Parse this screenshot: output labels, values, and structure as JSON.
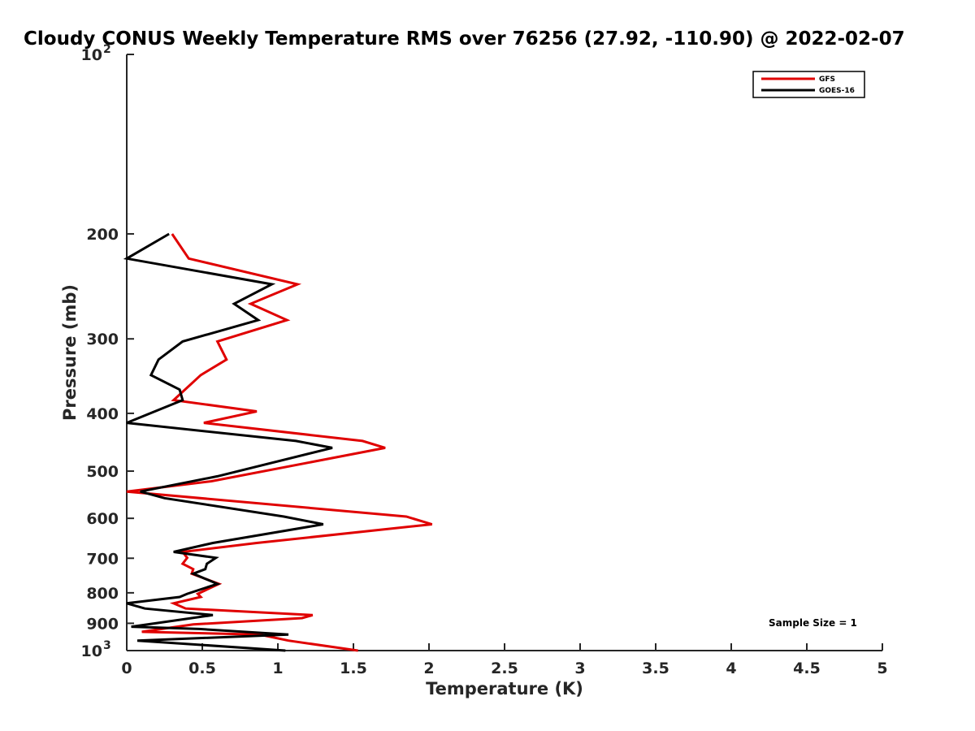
{
  "chart_data": {
    "type": "line",
    "title": "Cloudy CONUS Weekly Temperature RMS over 76256 (27.92, -110.90) @ 2022-02-07",
    "xlabel": "Temperature (K)",
    "ylabel": "Pressure (mb)",
    "xlim": [
      0,
      5
    ],
    "ylim": [
      100,
      1000
    ],
    "y_scale": "log",
    "y_reversed": true,
    "grid": false,
    "legend_position": "top-right",
    "x_ticks": [
      0,
      0.5,
      1,
      1.5,
      2,
      2.5,
      3,
      3.5,
      4,
      4.5,
      5
    ],
    "x_tick_labels": [
      "0",
      "0.5",
      "1",
      "1.5",
      "2",
      "2.5",
      "3",
      "3.5",
      "4",
      "4.5",
      "5"
    ],
    "y_ticks": [
      200,
      300,
      400,
      500,
      600,
      700,
      800,
      900
    ],
    "y_tick_labels": [
      "200",
      "300",
      "400",
      "500",
      "600",
      "700",
      "800",
      "900"
    ],
    "y_major_labels": [
      {
        "value": 100,
        "base": "10",
        "exp": "2"
      },
      {
        "value": 1000,
        "base": "10",
        "exp": "3"
      }
    ],
    "annotation": "Sample Size = 1",
    "series": [
      {
        "name": "GFS",
        "color": "#e00000",
        "points": [
          [
            0.3,
            200
          ],
          [
            0.41,
            220
          ],
          [
            1.13,
            243
          ],
          [
            0.82,
            262
          ],
          [
            1.06,
            279
          ],
          [
            0.6,
            303
          ],
          [
            0.66,
            325
          ],
          [
            0.49,
            345
          ],
          [
            0.31,
            380
          ],
          [
            0.86,
            397
          ],
          [
            0.51,
            415
          ],
          [
            1.56,
            445
          ],
          [
            1.71,
            457
          ],
          [
            0.56,
            520
          ],
          [
            0,
            541
          ],
          [
            1.85,
            596
          ],
          [
            2.02,
            614
          ],
          [
            0.86,
            660
          ],
          [
            0.37,
            683
          ],
          [
            0.4,
            699
          ],
          [
            0.37,
            715
          ],
          [
            0.44,
            730
          ],
          [
            0.43,
            743
          ],
          [
            0.61,
            773
          ],
          [
            0.47,
            803
          ],
          [
            0.49,
            813
          ],
          [
            0.31,
            833
          ],
          [
            0.39,
            850
          ],
          [
            1.23,
            872
          ],
          [
            1.16,
            882
          ],
          [
            0.44,
            904
          ],
          [
            0.1,
            930
          ],
          [
            0.88,
            940
          ],
          [
            1.07,
            962
          ],
          [
            1.53,
            1000
          ]
        ]
      },
      {
        "name": "GOES-16",
        "color": "#000000",
        "points": [
          [
            0.28,
            200
          ],
          [
            0,
            220
          ],
          [
            0.96,
            243
          ],
          [
            0.71,
            262
          ],
          [
            0.87,
            279
          ],
          [
            0.37,
            303
          ],
          [
            0.21,
            325
          ],
          [
            0.16,
            345
          ],
          [
            0.35,
            365
          ],
          [
            0.37,
            380
          ],
          [
            0,
            415
          ],
          [
            1.12,
            445
          ],
          [
            1.36,
            457
          ],
          [
            0.6,
            510
          ],
          [
            0.09,
            541
          ],
          [
            0.25,
            555
          ],
          [
            1.04,
            596
          ],
          [
            1.3,
            614
          ],
          [
            0.57,
            660
          ],
          [
            0.31,
            683
          ],
          [
            0.59,
            699
          ],
          [
            0.53,
            715
          ],
          [
            0.52,
            730
          ],
          [
            0.44,
            743
          ],
          [
            0.6,
            773
          ],
          [
            0.4,
            803
          ],
          [
            0.35,
            813
          ],
          [
            0,
            833
          ],
          [
            0.12,
            850
          ],
          [
            0.57,
            872
          ],
          [
            0.03,
            912
          ],
          [
            0.48,
            920
          ],
          [
            1.07,
            940
          ],
          [
            0.07,
            962
          ],
          [
            1.05,
            1000
          ]
        ]
      }
    ]
  }
}
